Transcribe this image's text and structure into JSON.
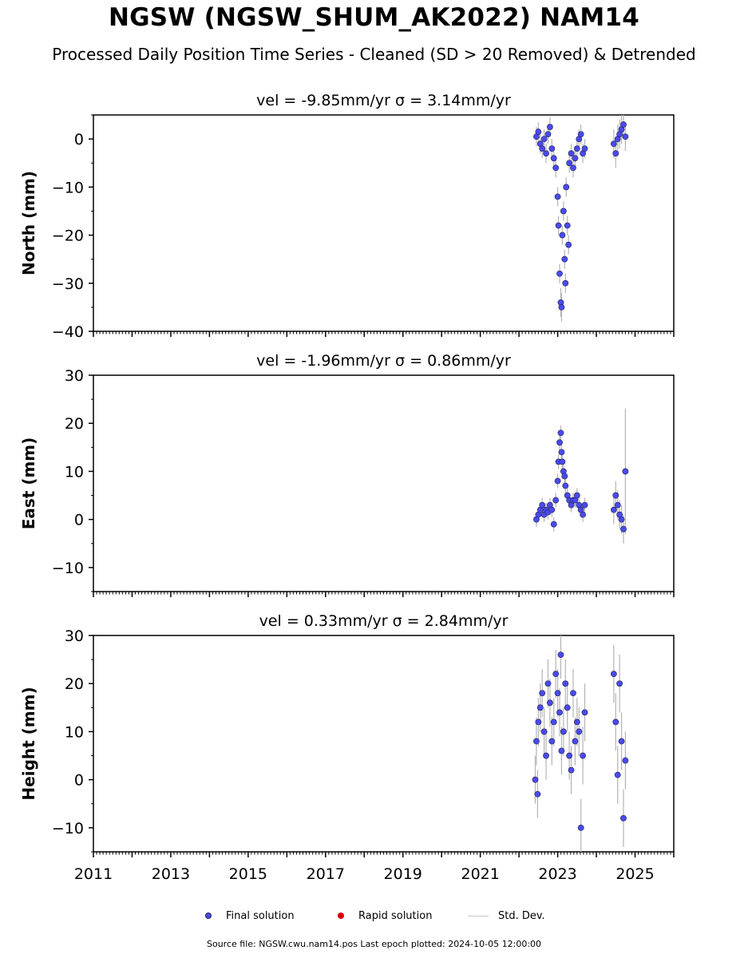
{
  "header": {
    "title": "NGSW (NGSW_SHUM_AK2022) NAM14",
    "subtitle": "Processed Daily Position Time Series - Cleaned (SD > 20 Removed) & Detrended"
  },
  "legend": {
    "final": "Final solution",
    "rapid": "Rapid solution",
    "stddev": "Std. Dev."
  },
  "footer": "Source file: NGSW.cwu.nam14.pos  Last epoch plotted: 2024-10-05 12:00:00",
  "colors": {
    "final": "#4a4aee",
    "rapid": "#dd0000",
    "errorbar": "#b4b4b4",
    "axis": "#000000"
  },
  "chart_data": [
    {
      "type": "scatter",
      "title": "vel = -9.85mm/yr   σ = 3.14mm/yr",
      "ylabel": "North (mm)",
      "xlim": [
        2011.0,
        2026.0
      ],
      "ylim": [
        -40,
        5
      ],
      "yticks": [
        0,
        -10,
        -20,
        -30,
        -40
      ],
      "yticklabels": [
        "0",
        "−10",
        "−20",
        "−30",
        "−40"
      ],
      "series": [
        {
          "name": "Final solution",
          "x": [
            2022.45,
            2022.5,
            2022.55,
            2022.6,
            2022.65,
            2022.7,
            2022.75,
            2022.8,
            2022.85,
            2022.9,
            2022.95,
            2023.0,
            2023.02,
            2023.05,
            2023.08,
            2023.1,
            2023.12,
            2023.15,
            2023.18,
            2023.2,
            2023.22,
            2023.25,
            2023.28,
            2023.3,
            2023.35,
            2023.4,
            2023.45,
            2023.5,
            2023.55,
            2023.6,
            2023.65,
            2023.7,
            2024.45,
            2024.5,
            2024.55,
            2024.6,
            2024.65,
            2024.7,
            2024.75
          ],
          "y": [
            0.5,
            1.5,
            -1,
            -2,
            0,
            -3,
            1,
            2.5,
            -2,
            -4,
            -6,
            -12,
            -18,
            -28,
            -34,
            -35,
            -20,
            -15,
            -25,
            -30,
            -10,
            -18,
            -22,
            -5,
            -3,
            -6,
            -4,
            -2,
            0,
            1,
            -3,
            -2,
            -1,
            -3,
            0,
            1,
            2,
            3,
            0.5
          ],
          "yerr": [
            2,
            2,
            2,
            2,
            2,
            2,
            2,
            2,
            2,
            2,
            2,
            2,
            2,
            2,
            3,
            3,
            2,
            2,
            2,
            2,
            2,
            2,
            2,
            2,
            2,
            2,
            2,
            2,
            2,
            2,
            2,
            2,
            3,
            3,
            3,
            3,
            3,
            3,
            3
          ]
        }
      ]
    },
    {
      "type": "scatter",
      "title": "vel = -1.96mm/yr   σ = 0.86mm/yr",
      "ylabel": "East (mm)",
      "xlim": [
        2011.0,
        2026.0
      ],
      "ylim": [
        -15,
        30
      ],
      "yticks": [
        30,
        20,
        10,
        0,
        -10
      ],
      "yticklabels": [
        "30",
        "20",
        "10",
        "0",
        "−10"
      ],
      "series": [
        {
          "name": "Final solution",
          "x": [
            2022.45,
            2022.5,
            2022.55,
            2022.6,
            2022.65,
            2022.7,
            2022.75,
            2022.8,
            2022.85,
            2022.9,
            2022.95,
            2023.0,
            2023.02,
            2023.05,
            2023.08,
            2023.1,
            2023.12,
            2023.15,
            2023.18,
            2023.2,
            2023.25,
            2023.3,
            2023.35,
            2023.4,
            2023.45,
            2023.5,
            2023.55,
            2023.6,
            2023.65,
            2023.7,
            2024.45,
            2024.5,
            2024.55,
            2024.6,
            2024.65,
            2024.7,
            2024.75
          ],
          "y": [
            0,
            1,
            2,
            3,
            1,
            2,
            1.5,
            3,
            2,
            -1,
            4,
            8,
            12,
            16,
            18,
            14,
            12,
            10,
            9,
            7,
            5,
            4,
            3,
            4,
            4,
            5,
            3,
            2,
            1,
            3,
            2,
            5,
            3,
            1,
            0,
            -2,
            10
          ],
          "yerr": [
            1.5,
            1.5,
            1.5,
            1.5,
            1.5,
            1.5,
            1.5,
            1.5,
            1.5,
            1.5,
            1.5,
            1.5,
            1.5,
            1.5,
            1.5,
            1.5,
            1.5,
            1.5,
            1.5,
            1.5,
            1.5,
            1.5,
            1.5,
            1.5,
            1.5,
            1.5,
            1.5,
            1.5,
            1.5,
            1.5,
            3,
            3,
            3,
            3,
            3,
            3,
            13
          ]
        }
      ]
    },
    {
      "type": "scatter",
      "title": "vel = 0.33mm/yr   σ = 2.84mm/yr",
      "ylabel": "Height (mm)",
      "xlim": [
        2011.0,
        2026.0
      ],
      "ylim": [
        -15,
        30
      ],
      "yticks": [
        30,
        20,
        10,
        0,
        -10
      ],
      "yticklabels": [
        "30",
        "20",
        "10",
        "0",
        "−10"
      ],
      "xticks": [
        2011,
        2013,
        2015,
        2017,
        2019,
        2021,
        2023,
        2025
      ],
      "xticklabels": [
        "2011",
        "2013",
        "2015",
        "2017",
        "2019",
        "2021",
        "2023",
        "2025"
      ],
      "series": [
        {
          "name": "Final solution",
          "x": [
            2022.42,
            2022.45,
            2022.48,
            2022.5,
            2022.55,
            2022.6,
            2022.65,
            2022.7,
            2022.75,
            2022.8,
            2022.85,
            2022.9,
            2022.95,
            2023.0,
            2023.05,
            2023.08,
            2023.1,
            2023.15,
            2023.2,
            2023.25,
            2023.3,
            2023.35,
            2023.4,
            2023.45,
            2023.5,
            2023.55,
            2023.6,
            2023.65,
            2023.7,
            2024.45,
            2024.5,
            2024.55,
            2024.6,
            2024.65,
            2024.7,
            2024.75
          ],
          "y": [
            0,
            8,
            -3,
            12,
            15,
            18,
            10,
            5,
            20,
            16,
            8,
            12,
            22,
            18,
            14,
            26,
            6,
            10,
            20,
            15,
            5,
            2,
            18,
            8,
            12,
            10,
            -10,
            5,
            14,
            22,
            12,
            1,
            20,
            8,
            -8,
            4
          ],
          "yerr": [
            5,
            5,
            5,
            5,
            5,
            5,
            5,
            5,
            5,
            5,
            5,
            5,
            5,
            5,
            5,
            5,
            5,
            5,
            5,
            5,
            5,
            5,
            5,
            5,
            5,
            5,
            6,
            6,
            6,
            6,
            6,
            6,
            6,
            6,
            6,
            6
          ]
        }
      ]
    }
  ]
}
